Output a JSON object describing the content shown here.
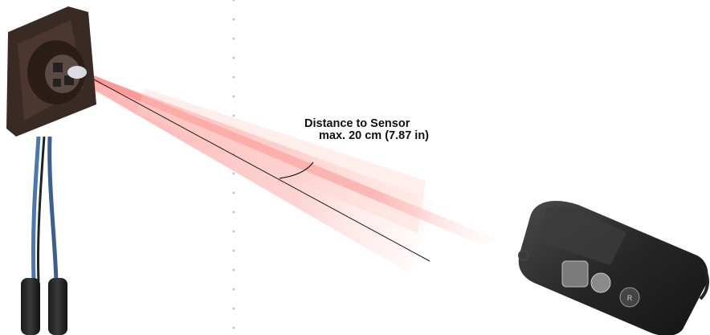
{
  "diagram": {
    "distance_label": {
      "line1": "Distance to Sensor",
      "line2": "max. 20 cm (7.87 in)"
    },
    "colors": {
      "beam": "#f0706a",
      "beam_light": "#ffd6d2",
      "divider_dots": "#b8c8dc",
      "sensor_body": "#3a2a24",
      "cable_blue": "#4a78b0",
      "remote_body": "#2a2a2a"
    },
    "objects": [
      {
        "icon": "infrared-sensor-icon"
      },
      {
        "icon": "remote-transmitter-icon"
      }
    ]
  }
}
